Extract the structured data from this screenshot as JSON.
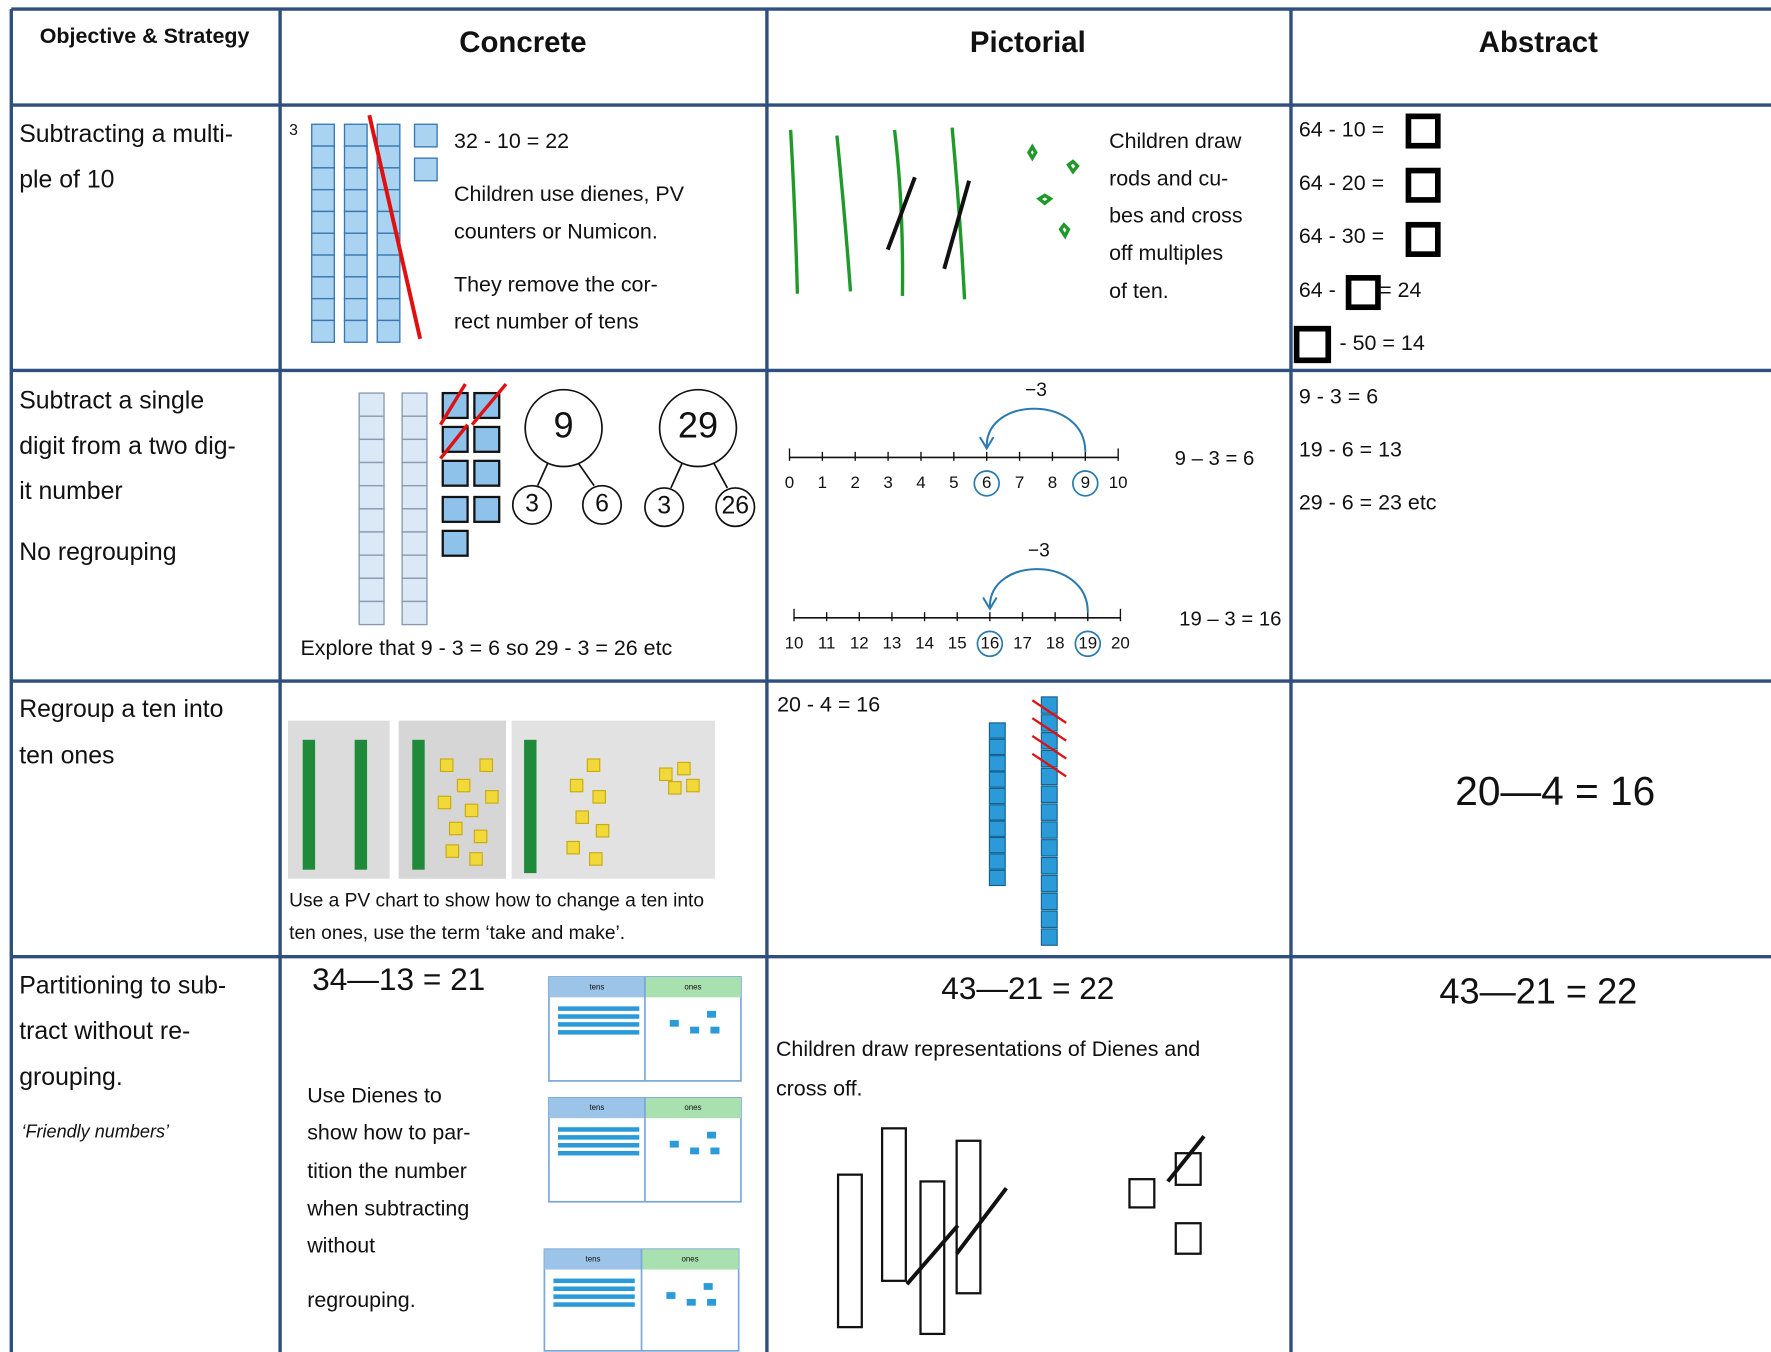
{
  "table": {
    "headers": [
      "Objective & Strategy",
      "Concrete",
      "Pictorial",
      "Abstract"
    ],
    "rows": [
      {
        "objective": [
          "Subtracting a multi-",
          "ple of 10"
        ],
        "concrete": {
          "tag": "3",
          "lines": [
            "32 - 10 = 22",
            "Children use dienes, PV",
            "counters or Numicon.",
            "They remove the cor-",
            "rect number of tens"
          ]
        },
        "pictorial": {
          "lines": [
            "Children draw",
            "rods and cu-",
            "bes and cross",
            "off multiples",
            "of ten."
          ]
        },
        "abstract": [
          "64 - 10 =",
          "64 - 20 =",
          "64 - 30 =",
          "64 -",
          "= 24",
          "-  50 = 14"
        ]
      },
      {
        "objective": [
          "Subtract a single",
          "digit from a two dig-",
          "it number",
          "No regrouping"
        ],
        "concrete": {
          "part_whole": [
            "9",
            "3",
            "6",
            "29",
            "3",
            "26"
          ],
          "caption": "Explore that 9 - 3 = 6  so  29 - 3 = 26 etc"
        },
        "pictorial": {
          "jump": "−3",
          "line1": [
            "0",
            "1",
            "2",
            "3",
            "4",
            "5",
            "6",
            "7",
            "8",
            "9",
            "10"
          ],
          "equation1": "9 – 3 = 6",
          "jump2": "−3",
          "line2": [
            "10",
            "11",
            "12",
            "13",
            "14",
            "15",
            "16",
            "17",
            "18",
            "19",
            "20"
          ],
          "equation2": "19 – 3 = 16"
        },
        "abstract": [
          "9 - 3 = 6",
          "19 -  6 = 13",
          "29 - 6 = 23 etc"
        ]
      },
      {
        "objective": [
          "Regroup a ten into",
          "ten ones"
        ],
        "concrete": {
          "caption": [
            "Use a PV chart to show how to change a ten into",
            "ten ones, use the term ‘take and make’."
          ]
        },
        "pictorial": {
          "equation": "20  - 4 = 16"
        },
        "abstract": [
          "20—4 = 16"
        ]
      },
      {
        "objective": [
          "Partitioning to sub-",
          "tract without re-",
          "grouping.",
          "‘Friendly numbers’"
        ],
        "concrete": {
          "equation": "34—13 = 21",
          "lines": [
            "Use Dienes to",
            "show how to par-",
            "tition the number",
            "when subtracting",
            "without",
            "regrouping."
          ],
          "pv_headers": [
            "tens",
            "ones"
          ]
        },
        "pictorial": {
          "equation": "43—21 = 22",
          "lines": [
            "Children draw representations of Dienes and",
            "cross off."
          ]
        },
        "abstract": [
          "43—21 = 22"
        ]
      }
    ]
  }
}
